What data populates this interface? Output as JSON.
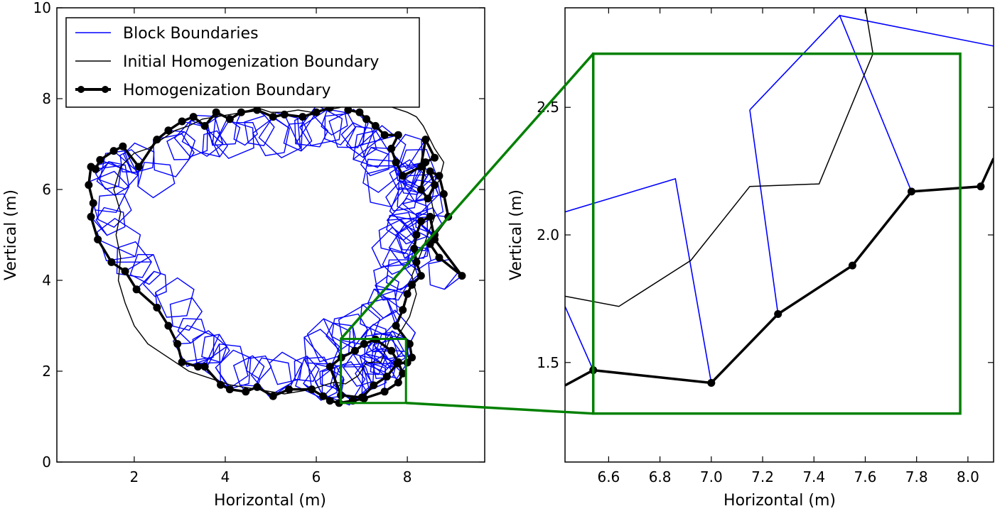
{
  "chart_data": [
    {
      "type": "line",
      "xlabel": "Horizontal (m)",
      "ylabel": "Vertical (m)",
      "xlim": [
        0.3,
        9.7
      ],
      "ylim": [
        0,
        10
      ],
      "xticks": [
        2,
        4,
        6,
        8
      ],
      "yticks": [
        0,
        2,
        4,
        6,
        8,
        10
      ],
      "legend": {
        "placement": "top-left",
        "entries": [
          "Block Boundaries",
          "Initial Homogenization Boundary",
          "Homogenization Boundary"
        ]
      },
      "series": [
        {
          "name": "Homogenization Boundary",
          "style": "thick-black-markers",
          "x": [
            6.54,
            7.0,
            7.26,
            7.55,
            7.78,
            8.0,
            8.1,
            8.05,
            7.75,
            7.9,
            8.0,
            8.1,
            8.3,
            8.2,
            8.15,
            8.2,
            8.3,
            8.5,
            8.6,
            9.2,
            8.7,
            8.5,
            8.6,
            8.9,
            8.8,
            8.7,
            8.5,
            8.6,
            8.45,
            8.3,
            8.4,
            8.6,
            8.4,
            8.3,
            7.9,
            7.75,
            7.65,
            7.8,
            7.5,
            7.3,
            7.1,
            6.95,
            6.7,
            6.6,
            6.3,
            6.0,
            5.7,
            5.3,
            5.05,
            4.7,
            4.35,
            4.1,
            3.8,
            3.55,
            3.3,
            3.05,
            2.75,
            2.5,
            2.1,
            1.75,
            1.55,
            1.25,
            1.15,
            1.05,
            1.0,
            1.1,
            1.05,
            1.2,
            1.5,
            1.8,
            2.05,
            2.5,
            2.75,
            2.95,
            3.05,
            3.4,
            3.55,
            3.9,
            4.1,
            4.45,
            4.7,
            5.05,
            5.4,
            5.9,
            6.15,
            6.3,
            6.5,
            6.8,
            7.05,
            7.5,
            7.8,
            7.9,
            7.8,
            7.65,
            7.3,
            7.05,
            6.85,
            6.55,
            6.3
          ],
          "y": [
            1.47,
            1.42,
            1.69,
            1.88,
            2.17,
            2.19,
            2.3,
            2.6,
            3.0,
            3.35,
            3.7,
            3.9,
            4.1,
            4.4,
            4.7,
            5.0,
            5.3,
            5.4,
            4.9,
            4.1,
            4.5,
            4.8,
            5.0,
            5.4,
            5.9,
            6.3,
            6.4,
            6.1,
            5.8,
            6.0,
            6.6,
            6.7,
            7.1,
            6.5,
            6.3,
            6.6,
            6.9,
            7.2,
            7.2,
            7.4,
            7.55,
            7.7,
            7.75,
            7.9,
            7.8,
            7.7,
            7.6,
            7.65,
            7.6,
            7.75,
            7.7,
            7.55,
            7.7,
            7.4,
            7.6,
            7.5,
            7.3,
            7.1,
            6.5,
            6.95,
            6.85,
            6.65,
            6.45,
            6.5,
            6.1,
            5.7,
            5.4,
            4.9,
            4.4,
            4.2,
            3.8,
            3.4,
            3.0,
            2.6,
            2.2,
            2.1,
            2.1,
            1.7,
            1.6,
            1.55,
            1.65,
            1.45,
            1.6,
            1.6,
            1.45,
            1.35,
            1.3,
            1.35,
            1.4,
            1.55,
            1.75,
            1.95,
            2.2,
            2.45,
            2.7,
            2.6,
            2.45,
            2.3,
            2.1
          ]
        },
        {
          "name": "Initial Homogenization Boundary",
          "style": "thin-black",
          "x": [
            6.4,
            6.64,
            6.92,
            7.1,
            7.42,
            7.63,
            7.75,
            8.05,
            8.2,
            8.1,
            8.3,
            8.45,
            8.6,
            8.5,
            8.7,
            8.8,
            8.6,
            8.45,
            8.35,
            8.2,
            8.0,
            7.7,
            7.4,
            7.1,
            6.8,
            6.5,
            6.2,
            5.9,
            5.6,
            5.3,
            5.0,
            4.7,
            4.4,
            4.1,
            3.8,
            3.5,
            3.2,
            2.9,
            2.6,
            2.3,
            2.0,
            1.7,
            1.55,
            1.7,
            1.6,
            1.7,
            1.65,
            1.8,
            2.0,
            2.3,
            2.6,
            2.9,
            3.2,
            3.5,
            3.8,
            4.1,
            4.4,
            4.7,
            5.0,
            5.3,
            5.6,
            5.9,
            6.2,
            6.4
          ],
          "y": [
            1.76,
            1.72,
            1.9,
            2.19,
            2.2,
            2.75,
            2.7,
            3.2,
            3.7,
            4.1,
            4.6,
            5.0,
            5.4,
            5.9,
            6.2,
            6.6,
            6.9,
            7.2,
            7.4,
            7.6,
            7.7,
            7.8,
            7.9,
            7.95,
            7.9,
            7.8,
            7.75,
            7.7,
            7.75,
            7.7,
            7.7,
            7.8,
            7.7,
            7.65,
            7.6,
            7.55,
            7.4,
            7.3,
            7.1,
            6.9,
            6.8,
            6.5,
            6.0,
            5.5,
            5.0,
            4.5,
            4.0,
            3.5,
            3.0,
            2.6,
            2.4,
            2.2,
            2.0,
            1.9,
            1.8,
            1.7,
            1.65,
            1.6,
            1.55,
            1.5,
            1.55,
            1.6,
            1.7,
            1.76
          ]
        }
      ],
      "block_boundaries_note": "ring of irregular blue polygons inside the boundary"
    },
    {
      "type": "line",
      "xlabel": "Horizontal (m)",
      "ylabel": "Vertical (m)",
      "xlim": [
        6.43,
        8.1
      ],
      "ylim": [
        1.11,
        2.89
      ],
      "xticks": [
        6.6,
        6.8,
        7.0,
        7.2,
        7.4,
        7.6,
        7.8,
        8.0
      ],
      "xtick_labels": [
        "6.6",
        "6.8",
        "7.0",
        "7.2",
        "7.4",
        "7.6",
        "7.8",
        "8.0"
      ],
      "yticks": [
        1.5,
        2.0,
        2.5
      ],
      "ytick_labels": [
        "1.5",
        "2.0",
        "2.5"
      ],
      "series": [
        {
          "name": "Homogenization Boundary",
          "style": "thick-black-markers",
          "x": [
            6.43,
            6.54,
            7.0,
            7.26,
            7.55,
            7.78,
            8.05,
            8.1
          ],
          "y": [
            1.41,
            1.47,
            1.42,
            1.69,
            1.88,
            2.17,
            2.19,
            2.3
          ],
          "marker_x": [
            6.54,
            7.0,
            7.26,
            7.55,
            7.78,
            8.05
          ],
          "marker_y": [
            1.47,
            1.42,
            1.69,
            1.88,
            2.17,
            2.19
          ]
        },
        {
          "name": "Initial Homogenization Boundary",
          "style": "thin-black",
          "x": [
            6.43,
            6.64,
            6.92,
            7.15,
            7.42,
            7.63,
            7.6
          ],
          "y": [
            1.76,
            1.72,
            1.9,
            2.19,
            2.2,
            2.71,
            2.89
          ]
        }
      ],
      "block_segments": [
        {
          "x": [
            6.43,
            6.86,
            7.0
          ],
          "y": [
            2.09,
            2.22,
            1.42
          ]
        },
        {
          "x": [
            7.15,
            7.26
          ],
          "y": [
            2.49,
            1.69
          ]
        },
        {
          "x": [
            7.15,
            7.5,
            7.78
          ],
          "y": [
            2.49,
            2.86,
            2.17
          ]
        },
        {
          "x": [
            7.5,
            8.1
          ],
          "y": [
            2.86,
            2.74
          ]
        },
        {
          "x": [
            6.43,
            6.54
          ],
          "y": [
            1.72,
            1.47
          ]
        }
      ],
      "zoom_box": {
        "x": [
          6.54,
          7.97
        ],
        "y": [
          1.3,
          2.71
        ],
        "color": "#008000"
      }
    }
  ],
  "colors": {
    "block": "#0000ff",
    "boundary": "#000000",
    "zoom": "#008000"
  }
}
